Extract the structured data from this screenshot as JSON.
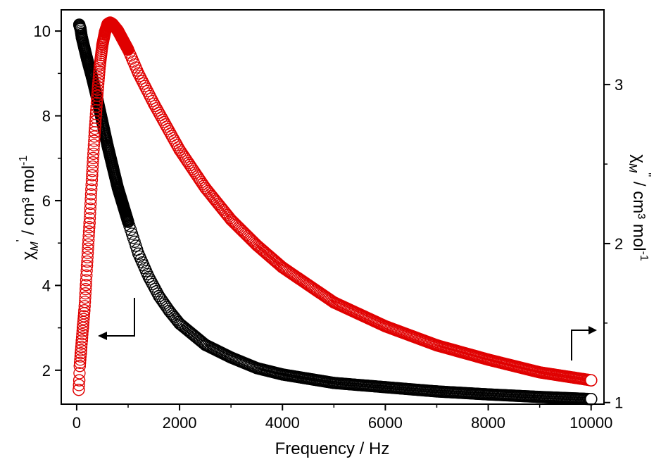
{
  "chart_data": {
    "type": "scatter",
    "title": "",
    "xlabel": "Frequency / Hz",
    "ylabel_left": {
      "symbol": "χ",
      "sub": "M",
      "sup": "'",
      "rest": " / cm³ mol",
      "exp": "-1"
    },
    "ylabel_right": {
      "symbol": "χ",
      "sub": "M",
      "sup": "''",
      "rest": " / cm³ mol",
      "exp": "-1"
    },
    "xlim": [
      -300,
      10250
    ],
    "ylim_left": [
      1.2,
      10.5
    ],
    "ylim_right": [
      0.99,
      3.47
    ],
    "x_ticks": [
      "0",
      "2000",
      "4000",
      "6000",
      "8000",
      "10000"
    ],
    "y_left_ticks": [
      "2",
      "4",
      "6",
      "8",
      "10"
    ],
    "y_right_ticks": [
      "1",
      "2",
      "3"
    ],
    "series": [
      {
        "axis": "left",
        "color": "#000000",
        "points": [
          [
            50,
            10.15
          ],
          [
            75,
            10.05
          ],
          [
            100,
            9.85
          ],
          [
            150,
            9.6
          ],
          [
            200,
            9.35
          ],
          [
            300,
            8.9
          ],
          [
            400,
            8.4
          ],
          [
            500,
            7.85
          ],
          [
            600,
            7.3
          ],
          [
            700,
            6.8
          ],
          [
            800,
            6.3
          ],
          [
            1000,
            5.5
          ],
          [
            1200,
            4.75
          ],
          [
            1400,
            4.2
          ],
          [
            1600,
            3.75
          ],
          [
            1800,
            3.4
          ],
          [
            2000,
            3.1
          ],
          [
            2500,
            2.6
          ],
          [
            3000,
            2.3
          ],
          [
            3500,
            2.05
          ],
          [
            4000,
            1.9
          ],
          [
            4500,
            1.8
          ],
          [
            5000,
            1.7
          ],
          [
            6000,
            1.6
          ],
          [
            7000,
            1.5
          ],
          [
            8000,
            1.43
          ],
          [
            9000,
            1.37
          ],
          [
            10000,
            1.32
          ]
        ]
      },
      {
        "axis": "right",
        "color": "#e00000",
        "points": [
          [
            40,
            1.08
          ],
          [
            50,
            1.14
          ],
          [
            60,
            1.23
          ],
          [
            80,
            1.31
          ],
          [
            100,
            1.39
          ],
          [
            120,
            1.47
          ],
          [
            150,
            1.58
          ],
          [
            180,
            1.74
          ],
          [
            200,
            1.86
          ],
          [
            250,
            2.13
          ],
          [
            300,
            2.43
          ],
          [
            350,
            2.7
          ],
          [
            400,
            2.93
          ],
          [
            450,
            3.12
          ],
          [
            500,
            3.25
          ],
          [
            550,
            3.33
          ],
          [
            600,
            3.38
          ],
          [
            650,
            3.39
          ],
          [
            700,
            3.38
          ],
          [
            800,
            3.34
          ],
          [
            1000,
            3.22
          ],
          [
            1200,
            3.07
          ],
          [
            1500,
            2.88
          ],
          [
            2000,
            2.59
          ],
          [
            2500,
            2.35
          ],
          [
            3000,
            2.15
          ],
          [
            3500,
            1.99
          ],
          [
            4000,
            1.85
          ],
          [
            4500,
            1.74
          ],
          [
            5000,
            1.63
          ],
          [
            6000,
            1.48
          ],
          [
            7000,
            1.36
          ],
          [
            8000,
            1.27
          ],
          [
            9000,
            1.19
          ],
          [
            10000,
            1.14
          ]
        ]
      }
    ],
    "arrows": [
      {
        "points_to": "left",
        "stroke": "#000000"
      },
      {
        "points_to": "right",
        "stroke": "#000000"
      }
    ]
  }
}
